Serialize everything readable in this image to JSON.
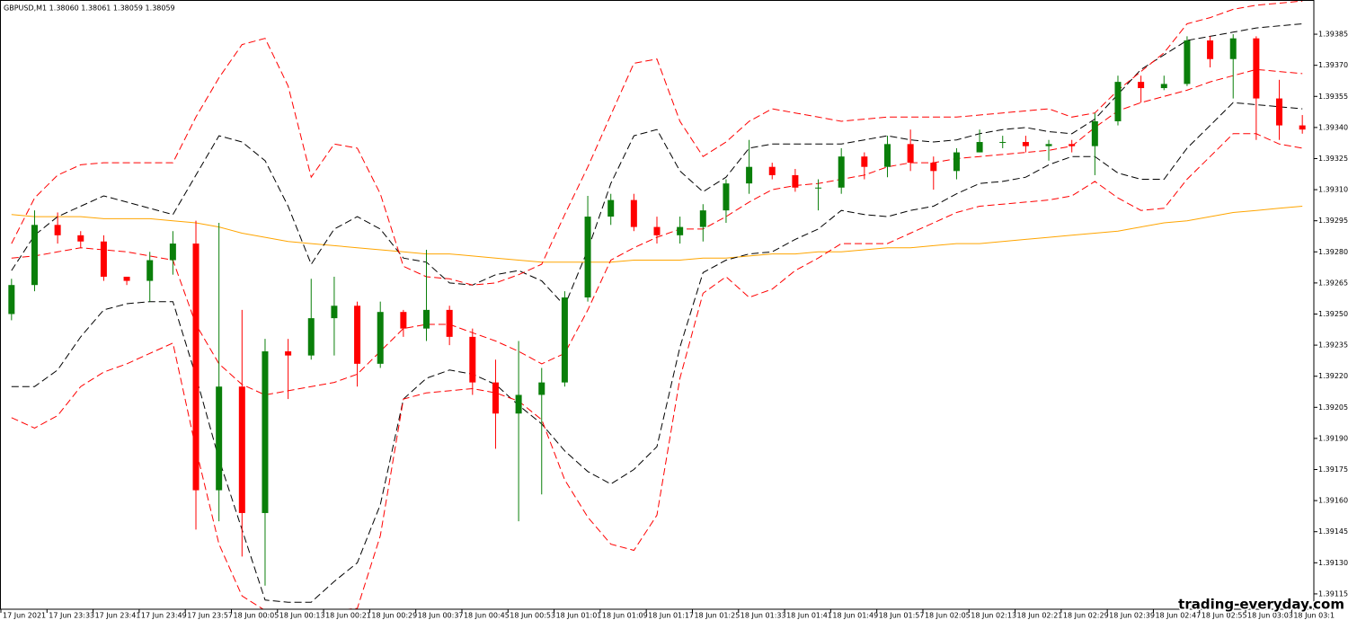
{
  "chart_data": {
    "type": "candlestick",
    "title": "GBPUSD,M1  1.38060 1.38061 1.38059 1.38059",
    "watermark": "trading-everyday.com",
    "up_color": "#0a7f0a",
    "down_color": "#ff0000",
    "grid": false,
    "categories": [
      "17 Jun 2021",
      null,
      "17 Jun 23:33",
      null,
      "17 Jun 23:41",
      null,
      "17 Jun 23:49",
      null,
      "17 Jun 23:57",
      null,
      "18 Jun 00:05",
      null,
      "18 Jun 00:13",
      null,
      "18 Jun 00:21",
      null,
      "18 Jun 00:29",
      null,
      "18 Jun 00:37",
      null,
      "18 Jun 00:45",
      null,
      "18 Jun 00:53",
      null,
      "18 Jun 01:01",
      null,
      "18 Jun 01:09",
      null,
      "18 Jun 01:17",
      null,
      "18 Jun 01:25",
      null,
      "18 Jun 01:33",
      null,
      "18 Jun 01:41",
      null,
      "18 Jun 01:49",
      null,
      "18 Jun 01:57",
      null,
      "18 Jun 02:05",
      null,
      "18 Jun 02:13",
      null,
      "18 Jun 02:21",
      null,
      "18 Jun 02:29",
      null,
      "18 Jun 02:39",
      null,
      "18 Jun 02:47",
      null,
      "18 Jun 02:55",
      null,
      "18 Jun 03:03",
      null,
      "18 Jun 03:1"
    ],
    "open": [
      1.3925,
      1.39264,
      1.39293,
      1.39288,
      1.39285,
      1.39268,
      1.39266,
      1.39276,
      1.39284,
      1.39165,
      1.39215,
      1.39154,
      1.39232,
      1.3923,
      1.39248,
      1.39254,
      1.39226,
      1.39251,
      1.39243,
      1.39252,
      1.39239,
      1.39217,
      1.39202,
      1.39211,
      1.39217,
      1.39258,
      1.39297,
      1.39305,
      1.39292,
      1.39288,
      1.39292,
      1.393,
      1.39313,
      1.39321,
      1.39317,
      1.39311,
      1.39311,
      1.39326,
      1.39321,
      1.39332,
      1.39323,
      1.39319,
      1.39328,
      1.39333,
      1.39333,
      1.39331,
      1.39332,
      1.39331,
      1.39343,
      1.39362,
      1.39359,
      1.39361,
      1.39382,
      1.39373,
      1.39383,
      1.39354,
      1.39341
    ],
    "high": [
      1.39267,
      1.393,
      1.39299,
      1.3929,
      1.39288,
      1.39268,
      1.3928,
      1.3929,
      1.39295,
      1.39294,
      1.39252,
      1.39238,
      1.39238,
      1.39267,
      1.39268,
      1.39256,
      1.39256,
      1.39252,
      1.39281,
      1.39254,
      1.39243,
      1.39228,
      1.39237,
      1.39224,
      1.39261,
      1.39307,
      1.39308,
      1.39308,
      1.39297,
      1.39297,
      1.39303,
      1.39315,
      1.39334,
      1.39323,
      1.3932,
      1.39315,
      1.3933,
      1.39328,
      1.39336,
      1.39339,
      1.39326,
      1.3933,
      1.39339,
      1.39336,
      1.39336,
      1.39334,
      1.39334,
      1.39347,
      1.39365,
      1.39365,
      1.39365,
      1.39384,
      1.39384,
      1.39385,
      1.39384,
      1.39363,
      1.39346
    ],
    "low": [
      1.39247,
      1.39261,
      1.39284,
      1.39282,
      1.39266,
      1.39264,
      1.39256,
      1.39269,
      1.39146,
      1.3915,
      1.39133,
      1.39119,
      1.39209,
      1.39228,
      1.3923,
      1.39215,
      1.39224,
      1.39239,
      1.39237,
      1.39235,
      1.39211,
      1.39185,
      1.3915,
      1.39163,
      1.39215,
      1.39256,
      1.39293,
      1.3929,
      1.39284,
      1.39284,
      1.39285,
      1.39294,
      1.39308,
      1.39315,
      1.39309,
      1.393,
      1.39308,
      1.39315,
      1.39316,
      1.39319,
      1.3931,
      1.39315,
      1.39328,
      1.3933,
      1.39328,
      1.39324,
      1.39328,
      1.39317,
      1.39341,
      1.39352,
      1.39358,
      1.3936,
      1.39369,
      1.39354,
      1.39334,
      1.39334,
      1.39337
    ],
    "close": [
      1.39264,
      1.39293,
      1.39288,
      1.39285,
      1.39268,
      1.39266,
      1.39276,
      1.39284,
      1.39165,
      1.39215,
      1.39154,
      1.39232,
      1.3923,
      1.39248,
      1.39254,
      1.39226,
      1.39251,
      1.39243,
      1.39252,
      1.39239,
      1.39217,
      1.39202,
      1.39211,
      1.39217,
      1.39258,
      1.39297,
      1.39305,
      1.39292,
      1.39288,
      1.39292,
      1.393,
      1.39313,
      1.39321,
      1.39317,
      1.39311,
      1.39311,
      1.39326,
      1.39321,
      1.39332,
      1.39323,
      1.39319,
      1.39328,
      1.39333,
      1.39333,
      1.39331,
      1.39332,
      1.39331,
      1.39343,
      1.39362,
      1.39359,
      1.39361,
      1.39382,
      1.39373,
      1.39383,
      1.39354,
      1.39341,
      1.39339
    ],
    "lines": [
      {
        "color": "#ffa500",
        "style": "solid",
        "values": [
          1.39298,
          1.39297,
          1.39297,
          1.39297,
          1.39296,
          1.39296,
          1.39296,
          1.39295,
          1.39294,
          1.39292,
          1.39289,
          1.39287,
          1.39285,
          1.39284,
          1.39283,
          1.39282,
          1.39281,
          1.3928,
          1.39279,
          1.39279,
          1.39278,
          1.39277,
          1.39276,
          1.39275,
          1.39275,
          1.39275,
          1.39275,
          1.39276,
          1.39276,
          1.39276,
          1.39277,
          1.39277,
          1.39278,
          1.39279,
          1.39279,
          1.3928,
          1.3928,
          1.39281,
          1.39282,
          1.39282,
          1.39283,
          1.39284,
          1.39284,
          1.39285,
          1.39286,
          1.39287,
          1.39288,
          1.39289,
          1.3929,
          1.39292,
          1.39294,
          1.39295,
          1.39297,
          1.39299,
          1.393,
          1.39301,
          1.39302
        ]
      },
      {
        "color": "#000000",
        "style": "dashed",
        "values": [
          1.39271,
          1.39288,
          1.39297,
          1.39302,
          1.39307,
          1.39304,
          1.39301,
          1.39298,
          1.39317,
          1.39336,
          1.39333,
          1.39324,
          1.39302,
          1.39274,
          1.39291,
          1.39297,
          1.39291,
          1.39277,
          1.39275,
          1.39265,
          1.39264,
          1.39269,
          1.39271,
          1.39266,
          1.39254,
          1.39281,
          1.39313,
          1.39336,
          1.39339,
          1.39319,
          1.39309,
          1.39316,
          1.3933,
          1.39332,
          1.39332,
          1.39332,
          1.39332,
          1.39334,
          1.39336,
          1.39334,
          1.39333,
          1.39334,
          1.39337,
          1.39339,
          1.3934,
          1.39338,
          1.39337,
          1.39344,
          1.39356,
          1.39368,
          1.39375,
          1.39382,
          1.39384,
          1.39386,
          1.39388,
          1.39389,
          1.3939
        ]
      },
      {
        "color": "#000000",
        "style": "dashed",
        "values": [
          1.39215,
          1.39215,
          1.39223,
          1.39239,
          1.39252,
          1.39255,
          1.39256,
          1.39256,
          1.3922,
          1.3918,
          1.39146,
          1.39112,
          1.39111,
          1.39111,
          1.39121,
          1.3913,
          1.39158,
          1.39209,
          1.39219,
          1.39223,
          1.39221,
          1.39216,
          1.39206,
          1.39197,
          1.39184,
          1.39174,
          1.39168,
          1.39175,
          1.39186,
          1.39234,
          1.3927,
          1.39276,
          1.39279,
          1.3928,
          1.39286,
          1.39291,
          1.393,
          1.39298,
          1.39297,
          1.393,
          1.39302,
          1.39308,
          1.39313,
          1.39314,
          1.39316,
          1.39322,
          1.39326,
          1.39326,
          1.39318,
          1.39315,
          1.39315,
          1.3933,
          1.39341,
          1.39352,
          1.39351,
          1.3935,
          1.39349
        ]
      },
      {
        "color": "#ff0000",
        "style": "dashed",
        "values": [
          1.39284,
          1.39306,
          1.39317,
          1.39322,
          1.39323,
          1.39323,
          1.39323,
          1.39323,
          1.39345,
          1.39364,
          1.3938,
          1.39383,
          1.3936,
          1.39316,
          1.39332,
          1.3933,
          1.39308,
          1.39273,
          1.39268,
          1.39267,
          1.39264,
          1.39265,
          1.39269,
          1.39274,
          1.39298,
          1.39321,
          1.39346,
          1.39371,
          1.39373,
          1.39343,
          1.39326,
          1.39333,
          1.39343,
          1.39349,
          1.39347,
          1.39345,
          1.39343,
          1.39344,
          1.39345,
          1.39345,
          1.39345,
          1.39345,
          1.39346,
          1.39347,
          1.39348,
          1.39349,
          1.39345,
          1.39347,
          1.39358,
          1.39367,
          1.39376,
          1.3939,
          1.39393,
          1.39397,
          1.39399,
          1.394,
          1.39401
        ]
      },
      {
        "color": "#ff0000",
        "style": "dashed",
        "values": [
          1.392,
          1.39195,
          1.39201,
          1.39215,
          1.39222,
          1.39226,
          1.39231,
          1.39236,
          1.39185,
          1.39139,
          1.39114,
          1.39107,
          1.39107,
          1.39107,
          1.39107,
          1.39108,
          1.39143,
          1.39209,
          1.39212,
          1.39213,
          1.39214,
          1.39212,
          1.39208,
          1.39199,
          1.3917,
          1.39152,
          1.39139,
          1.39136,
          1.39153,
          1.39219,
          1.3926,
          1.39268,
          1.39258,
          1.39262,
          1.39271,
          1.39277,
          1.39284,
          1.39284,
          1.39284,
          1.39289,
          1.39294,
          1.39299,
          1.39302,
          1.39303,
          1.39304,
          1.39305,
          1.39307,
          1.39314,
          1.39306,
          1.393,
          1.39301,
          1.39315,
          1.39326,
          1.39337,
          1.39337,
          1.39332,
          1.3933
        ]
      },
      {
        "color": "#ff0000",
        "style": "dashed",
        "values": [
          1.39277,
          1.39278,
          1.3928,
          1.39282,
          1.39281,
          1.3928,
          1.39278,
          1.39276,
          1.39245,
          1.39226,
          1.39216,
          1.39211,
          1.39213,
          1.39215,
          1.39217,
          1.39221,
          1.39232,
          1.39243,
          1.39245,
          1.39245,
          1.39241,
          1.39237,
          1.39232,
          1.39226,
          1.39231,
          1.39252,
          1.39276,
          1.39282,
          1.39287,
          1.39291,
          1.39291,
          1.39297,
          1.39304,
          1.3931,
          1.39312,
          1.39313,
          1.39315,
          1.39317,
          1.39321,
          1.39323,
          1.39323,
          1.39325,
          1.39326,
          1.39327,
          1.39328,
          1.39329,
          1.39331,
          1.3934,
          1.39348,
          1.39352,
          1.39355,
          1.39358,
          1.39362,
          1.39365,
          1.39368,
          1.39367,
          1.39366
        ]
      }
    ],
    "ylim": [
      1.391076,
      1.394015
    ],
    "yticks": [
      1.39115,
      {
        "value": 1.3913,
        "label": "1.39130"
      },
      1.39145,
      {
        "value": 1.3916,
        "label": "1.39160"
      },
      1.39175,
      {
        "value": 1.3919,
        "label": "1.39190"
      },
      1.39205,
      {
        "value": 1.3922,
        "label": "1.39220"
      },
      1.39235,
      {
        "value": 1.3925,
        "label": "1.39250"
      },
      1.39265,
      {
        "value": 1.3928,
        "label": "1.39280"
      },
      1.39295,
      {
        "value": 1.3931,
        "label": "1.39310"
      },
      1.39325,
      {
        "value": 1.3934,
        "label": "1.39340"
      },
      1.39355,
      {
        "value": 1.3937,
        "label": "1.39370"
      },
      1.39385
    ]
  }
}
